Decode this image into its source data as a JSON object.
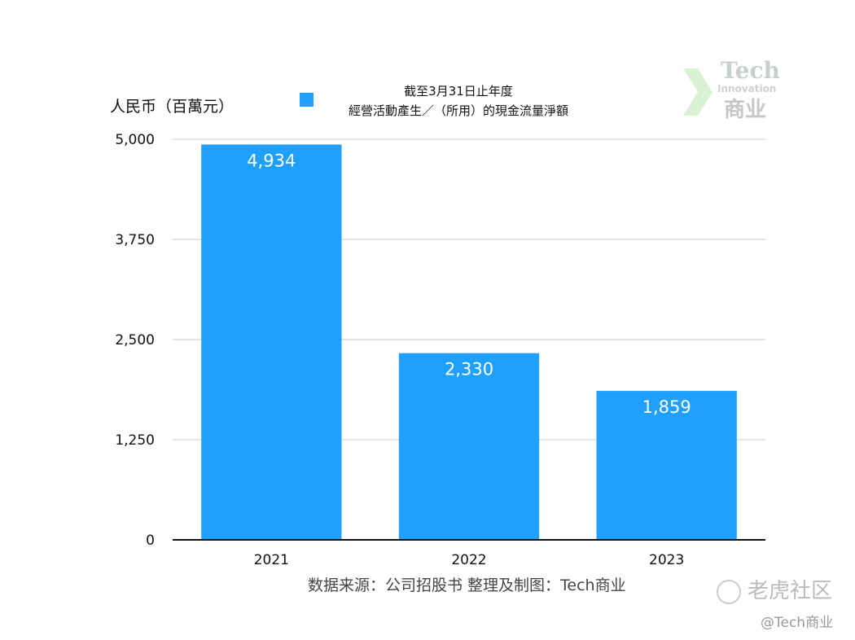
{
  "chart_data": {
    "type": "bar",
    "unit_label": "人民币（百萬元）",
    "legend": {
      "line1": "截至3月31日止年度",
      "line2": "經營活動產生／（所用）的現金流量淨額",
      "color": "#1fa0ff"
    },
    "categories": [
      "2021",
      "2022",
      "2023"
    ],
    "values": [
      4934,
      2330,
      1859
    ],
    "value_labels": [
      "4,934",
      "2,330",
      "1,859"
    ],
    "ylim": [
      0,
      5000
    ],
    "yticks": [
      0,
      1250,
      2500,
      3750,
      5000
    ],
    "ytick_labels": [
      "0",
      "1,250",
      "2,500",
      "3,750",
      "5,000"
    ],
    "grid": true,
    "bar_color": "#1fa0ff",
    "source": "数据来源：公司招股书  整理及制图：Tech商业"
  },
  "logo": {
    "tech": "Tech",
    "innovation": "Innovation",
    "shang": "商业"
  },
  "watermark": {
    "text": "老虎社区",
    "credit": "@Tech商业"
  }
}
